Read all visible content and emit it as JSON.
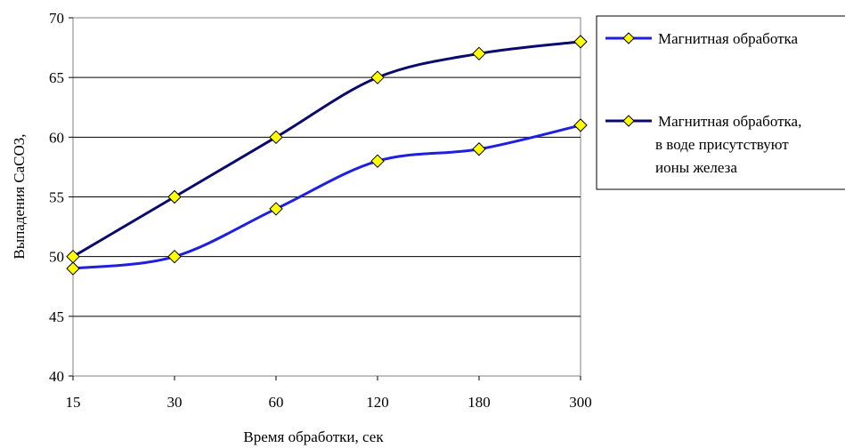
{
  "chart_data": {
    "type": "line",
    "categories": [
      "15",
      "30",
      "60",
      "120",
      "180",
      "300"
    ],
    "ylim": [
      40,
      70
    ],
    "yticks": [
      "40",
      "45",
      "50",
      "55",
      "60",
      "65",
      "70"
    ],
    "xlabel": "Время обработки, сек",
    "ylabel": "Выпадения CaCO3,",
    "grid": "horizontal",
    "legend_position": "right",
    "marker": "diamond",
    "marker_color": "#FFFF00",
    "series": [
      {
        "name": "Магнитная обработка",
        "values": [
          49,
          50,
          54,
          58,
          59,
          61
        ],
        "color": "#1F1FE0"
      },
      {
        "name_lines": [
          "Магнитная обработка,",
          "в воде присутствуют",
          "ионы железа"
        ],
        "values": [
          50,
          55,
          60,
          65,
          67,
          68
        ],
        "color": "#0A0A6E"
      }
    ]
  }
}
